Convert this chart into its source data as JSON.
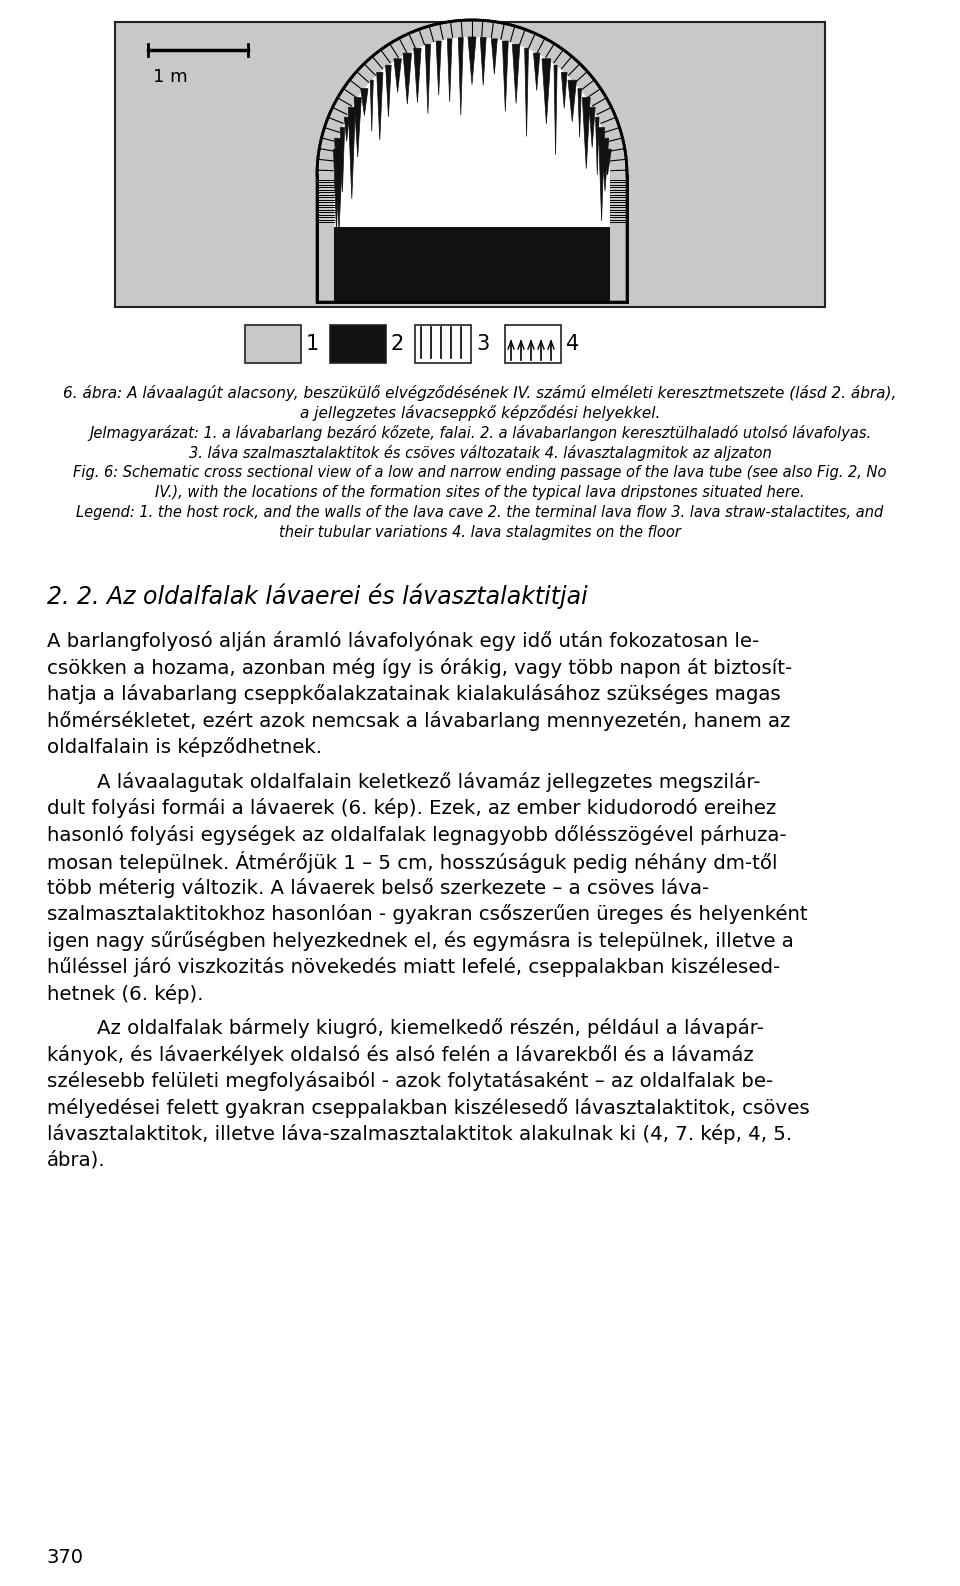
{
  "bg_color": "#ffffff",
  "figure_bg": "#c8c8c8",
  "scale_bar_label": "1 m",
  "caption_hu_line1": "6. ábra: A lávaalagút alacsony, beszükülő elvégződésének IV. számú elméleti keresztmetszete (lásd 2. ábra),",
  "caption_hu_line2": "a jellegzetes lávacseppkő képződési helyekkel.",
  "caption_hu_line3": "Jelmagyarázat: 1. a lávabarlang bezáró kőzete, falai. 2. a lávabarlangon keresztülhaladó utolsó lávafolyas.",
  "caption_hu_line4": "3. láva szalmasztalaktitok és csöves változataik 4. lávasztalagmitok az aljzaton",
  "caption_en_line1": "Fig. 6: Schematic cross sectional view of a low and narrow ending passage of the lava tube (see also Fig. 2, No",
  "caption_en_line2": "IV.), with the locations of the formation sites of the typical lava dripstones situated here.",
  "caption_en_line3": "Legend: 1. the host rock, and the walls of the lava cave 2. the terminal lava flow 3. lava straw-stalactites, and",
  "caption_en_line4": "their tubular variations 4. lava stalagmites on the floor",
  "section_heading": "2. 2. Az oldalfalak lávaerei és lávasztalaktitjai",
  "para1_lines": [
    "A barlangfolyosó alján áramló lávafolyónak egy idő után fokozatosan le-",
    "csökken a hozama, azonban még így is órákig, vagy több napon át biztosít-",
    "hatja a lávabarlang cseppkőalakzatainak kialakulásához szükséges magas",
    "hőmérsékletet, ezért azok nemcsak a lávabarlang mennyezetén, hanem az",
    "oldalfalain is képződhetnek."
  ],
  "para2_lines": [
    "        A lávaalagutak oldalfalain keletkező lávamáz jellegzetes megszilár-",
    "dult folyási formái a lávaerek (6. kép). Ezek, az ember kidudorodó ereihez",
    "hasonló folyási egységek az oldalfalak legnagyobb dőlésszögével párhuza-",
    "mosan települnek. Átmérőjük 1 – 5 cm, hosszúságuk pedig néhány dm-től",
    "több méterig változik. A lávaerek belső szerkezete – a csöves láva-",
    "szalmasztalaktitokhoz hasonlóan - gyakran csőszerűen üreges és helyenként",
    "igen nagy sűrűségben helyezkednek el, és egymásra is települnek, illetve a",
    "hűléssel járó viszkozitás növekedés miatt lefelé, cseppalakban kiszélesed-",
    "hetnek (6. kép)."
  ],
  "para3_lines": [
    "        Az oldalfalak bármely kiugró, kiemelkedő részén, például a lávapár-",
    "kányok, és lávaerkélyek oldalsó és alsó felén a lávarekből és a lávamáz",
    "szélesebb felületi megfolyásaiból - azok folytatásaként – az oldalfalak be-",
    "mélyedései felett gyakran cseppalakban kiszélesedő lávasztalaktitok, csöves",
    "lávasztalaktitok, illetve láva-szalmasztalaktitok alakulnak ki (4, 7. kép, 4, 5.",
    "ábra)."
  ],
  "page_number": "370"
}
